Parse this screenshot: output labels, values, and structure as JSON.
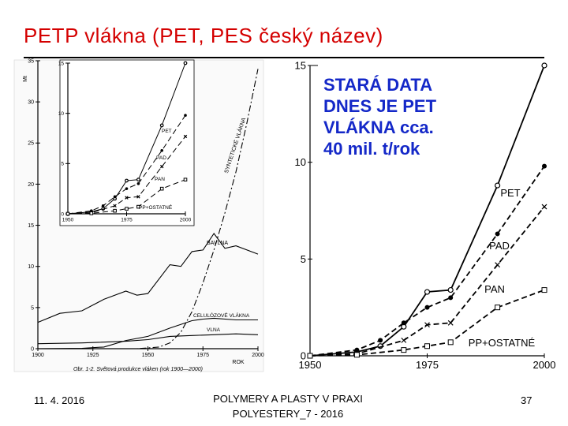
{
  "slide": {
    "title": "PETP vlákna (PET, PES český název)",
    "note_lines": [
      "STARÁ DATA",
      "DNES JE PET",
      "VLÁKNA cca.",
      "40 mil. t/rok"
    ],
    "footer_date": "11. 4. 2016",
    "footer_center_1": "POLYMERY A PLASTY V PRAXI",
    "footer_center_2": "POLYESTERY_7 - 2016",
    "footer_page": "37"
  },
  "chart_data": [
    {
      "type": "line",
      "title": "",
      "ylabel": "Mt",
      "xlabel": "ROK",
      "caption": "Obr. 1-2. Světová produkce vláken (rok 1900—2000)",
      "xlim": [
        1900,
        2000
      ],
      "ylim": [
        0,
        35
      ],
      "x_ticks": [
        "1900",
        "1925",
        "1950",
        "1975",
        "2000"
      ],
      "y_ticks": [
        "0",
        "5",
        "10",
        "15",
        "20",
        "25",
        "30",
        "35"
      ],
      "series": [
        {
          "name": "BAVLNA",
          "style": "solid",
          "x": [
            1900,
            1910,
            1920,
            1930,
            1940,
            1945,
            1950,
            1960,
            1965,
            1970,
            1975,
            1980,
            1985,
            1990,
            2000
          ],
          "y": [
            3.2,
            4.3,
            4.6,
            6.0,
            7.0,
            6.5,
            6.7,
            10.2,
            10.0,
            11.8,
            12.0,
            14.0,
            12.2,
            12.5,
            11.5
          ]
        },
        {
          "name": "SYNTETICKÉ VLÁKNA",
          "style": "dash-dot",
          "x": [
            1935,
            1945,
            1950,
            1955,
            1960,
            1965,
            1970,
            1975,
            1980,
            1985,
            1990,
            1995,
            2000
          ],
          "y": [
            0,
            0,
            0.1,
            0.2,
            0.7,
            2.0,
            4.5,
            8.0,
            12.0,
            16.5,
            21.5,
            27.5,
            34.0
          ]
        },
        {
          "name": "CELULÓZOVÉ VLÁKNA",
          "style": "solid",
          "x": [
            1900,
            1920,
            1930,
            1940,
            1950,
            1960,
            1970,
            1975,
            1980,
            1990,
            2000
          ],
          "y": [
            0,
            0.05,
            0.2,
            1.0,
            1.5,
            2.5,
            3.4,
            3.6,
            3.7,
            3.5,
            3.5
          ]
        },
        {
          "name": "VLNA",
          "style": "solid",
          "x": [
            1900,
            1920,
            1940,
            1950,
            1960,
            1970,
            1980,
            1990,
            2000
          ],
          "y": [
            0.6,
            0.7,
            0.9,
            1.1,
            1.5,
            1.6,
            1.7,
            1.8,
            1.7
          ]
        }
      ]
    },
    {
      "type": "line",
      "title": "",
      "xlim": [
        1950,
        2000
      ],
      "ylim": [
        0,
        15
      ],
      "x_ticks": [
        "1950",
        "1975",
        "2000"
      ],
      "y_ticks": [
        "0",
        "5",
        "10",
        "15"
      ],
      "series": [
        {
          "name": "PET",
          "style": "solid",
          "marker": "circle-open",
          "x": [
            1950,
            1960,
            1965,
            1970,
            1975,
            1980,
            1990,
            2000
          ],
          "y": [
            0,
            0.2,
            0.5,
            1.5,
            3.3,
            3.4,
            8.8,
            15.0
          ]
        },
        {
          "name": "PAD",
          "style": "dash",
          "marker": "circle-filled",
          "x": [
            1950,
            1960,
            1965,
            1970,
            1975,
            1980,
            1990,
            2000
          ],
          "y": [
            0,
            0.3,
            0.8,
            1.7,
            2.5,
            3.0,
            6.3,
            9.8
          ]
        },
        {
          "name": "PAN",
          "style": "dash",
          "marker": "x",
          "x": [
            1950,
            1960,
            1970,
            1975,
            1980,
            1990,
            2000
          ],
          "y": [
            0,
            0.1,
            0.8,
            1.6,
            1.7,
            4.7,
            7.7
          ]
        },
        {
          "name": "PP + OSTATNÉ",
          "style": "dash",
          "marker": "square-open",
          "x": [
            1950,
            1960,
            1970,
            1975,
            1980,
            1990,
            2000
          ],
          "y": [
            0,
            0.05,
            0.3,
            0.5,
            0.7,
            2.5,
            3.4
          ]
        }
      ]
    },
    {
      "type": "line",
      "title": "",
      "xlim": [
        1950,
        2000
      ],
      "ylim": [
        0,
        15
      ],
      "x_ticks": [
        "1950",
        "1975",
        "2000"
      ],
      "y_ticks": [
        "0",
        "5",
        "10",
        "15"
      ],
      "series": [
        {
          "name": "PET",
          "style": "solid",
          "marker": "circle-open",
          "x": [
            1950,
            1960,
            1965,
            1970,
            1975,
            1980,
            1990,
            2000
          ],
          "y": [
            0,
            0.2,
            0.5,
            1.5,
            3.3,
            3.4,
            8.8,
            15.0
          ]
        },
        {
          "name": "PAD",
          "style": "dash",
          "marker": "circle-filled",
          "x": [
            1950,
            1960,
            1965,
            1970,
            1975,
            1980,
            1990,
            2000
          ],
          "y": [
            0,
            0.3,
            0.8,
            1.7,
            2.5,
            3.0,
            6.3,
            9.8
          ]
        },
        {
          "name": "PAN",
          "style": "dash",
          "marker": "x",
          "x": [
            1950,
            1960,
            1970,
            1975,
            1980,
            1990,
            2000
          ],
          "y": [
            0,
            0.1,
            0.8,
            1.6,
            1.7,
            4.7,
            7.7
          ]
        },
        {
          "name": "PP + OSTATNÉ",
          "style": "dash",
          "marker": "square-open",
          "x": [
            1950,
            1960,
            1970,
            1975,
            1980,
            1990,
            2000
          ],
          "y": [
            0,
            0.05,
            0.3,
            0.5,
            0.7,
            2.5,
            3.4
          ]
        }
      ]
    }
  ]
}
